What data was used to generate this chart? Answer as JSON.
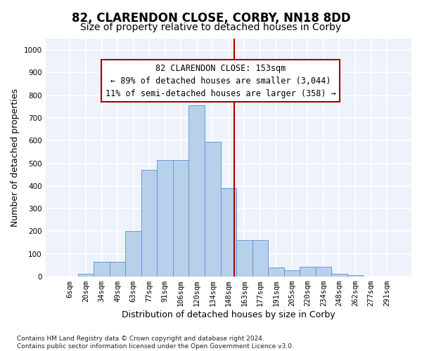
{
  "title": "82, CLARENDON CLOSE, CORBY, NN18 8DD",
  "subtitle": "Size of property relative to detached houses in Corby",
  "xlabel": "Distribution of detached houses by size in Corby",
  "ylabel": "Number of detached properties",
  "footer": "Contains HM Land Registry data © Crown copyright and database right 2024.\nContains public sector information licensed under the Open Government Licence v3.0.",
  "bar_labels": [
    "6sqm",
    "20sqm",
    "34sqm",
    "49sqm",
    "63sqm",
    "77sqm",
    "91sqm",
    "106sqm",
    "120sqm",
    "134sqm",
    "148sqm",
    "163sqm",
    "177sqm",
    "191sqm",
    "205sqm",
    "220sqm",
    "234sqm",
    "248sqm",
    "262sqm",
    "277sqm",
    "291sqm"
  ],
  "bar_values": [
    0,
    12,
    65,
    65,
    200,
    470,
    515,
    515,
    755,
    595,
    390,
    160,
    160,
    40,
    27,
    43,
    43,
    12,
    5,
    0,
    0
  ],
  "bar_color": "#b8d0ea",
  "bar_edge_color": "#5b8fd4",
  "background_color": "#eef2fb",
  "grid_color": "#ffffff",
  "vline_color": "#aa0000",
  "annotation_text": "82 CLARENDON CLOSE: 153sqm\n← 89% of detached houses are smaller (3,044)\n11% of semi-detached houses are larger (358) →",
  "annotation_box_edgecolor": "#aa0000",
  "ylim": [
    0,
    1050
  ],
  "yticks": [
    0,
    100,
    200,
    300,
    400,
    500,
    600,
    700,
    800,
    900,
    1000
  ],
  "title_fontsize": 12,
  "subtitle_fontsize": 10,
  "axis_label_fontsize": 9,
  "tick_fontsize": 7.5,
  "annotation_fontsize": 8.5,
  "footer_fontsize": 6.5
}
